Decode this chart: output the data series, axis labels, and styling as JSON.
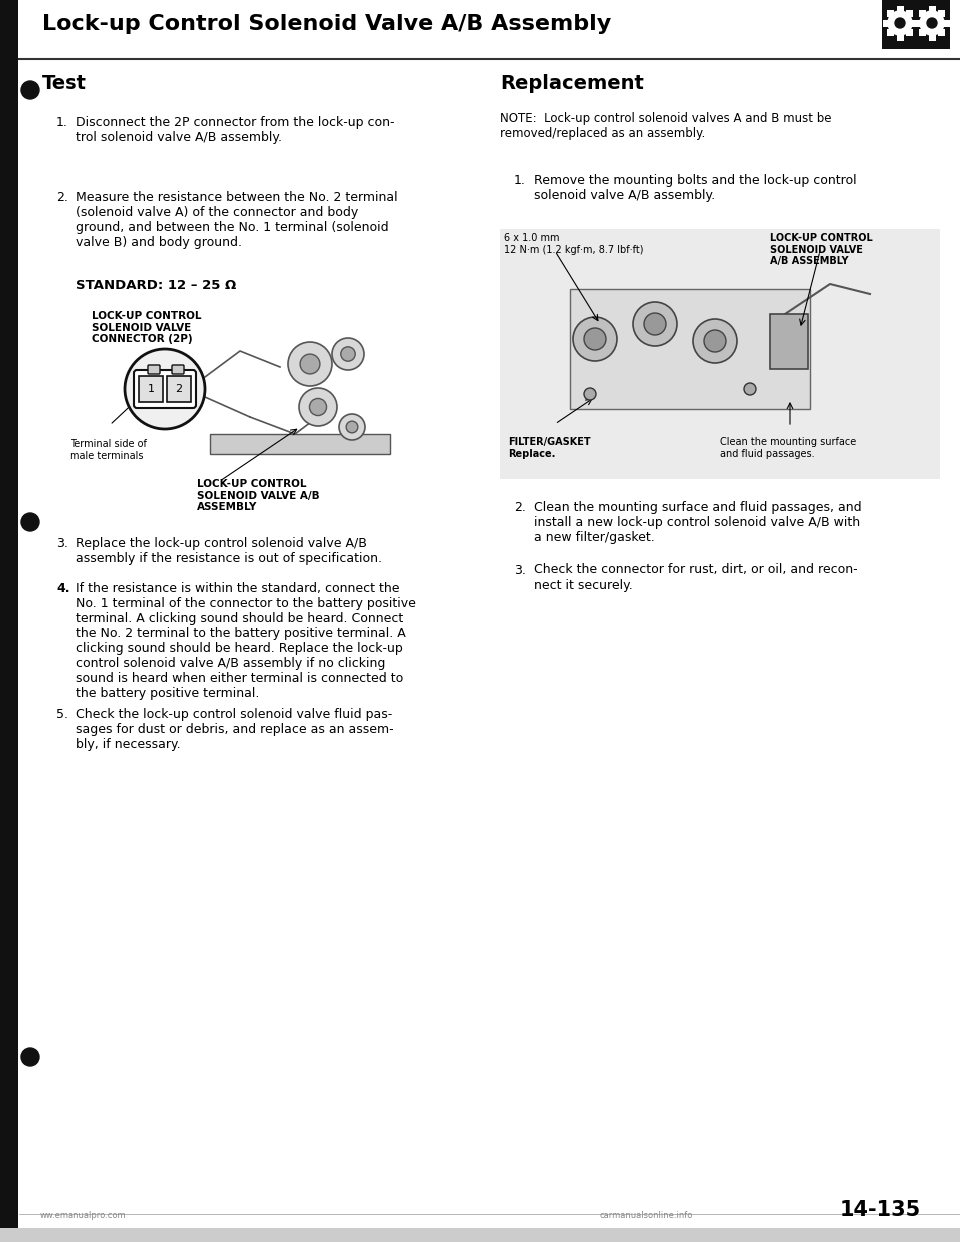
{
  "page_title": "Lock-up Control Solenoid Valve A/B Assembly",
  "bg_color": "#ffffff",
  "left_section_title": "Test",
  "right_section_title": "Replacement",
  "test_item1_num": "1.",
  "test_item1_text": "Disconnect the 2P connector from the lock-up con-\ntrol solenoid valve A/B assembly.",
  "test_item2_num": "2.",
  "test_item2_text": "Measure the resistance between the No. 2 terminal\n(solenoid valve A) of the connector and body\nground, and between the No. 1 terminal (solenoid\nvalve B) and body ground.",
  "standard_label": "STANDARD: 12 – 25 Ω",
  "connector_label": "LOCK-UP CONTROL\nSOLENOID VALVE\nCONNECTOR (2P)",
  "assembly_label": "LOCK-UP CONTROL\nSOLENOID VALVE A/B\nASSEMBLY",
  "terminal_label": "Terminal side of\nmale terminals",
  "test_item3_num": "3.",
  "test_item3_text": "Replace the lock-up control solenoid valve A/B\nassembly if the resistance is out of specification.",
  "test_item4_num": "4.",
  "test_item4_text": "If the resistance is within the standard, connect the\nNo. 1 terminal of the connector to the battery positive\nterminal. A clicking sound should be heard. Connect\nthe No. 2 terminal to the battery positive terminal. A\nclicking sound should be heard. Replace the lock-up\ncontrol solenoid valve A/B assembly if no clicking\nsound is heard when either terminal is connected to\nthe battery positive terminal.",
  "test_item5_num": "5.",
  "test_item5_text": "Check the lock-up control solenoid valve fluid pas-\nsages for dust or debris, and replace as an assem-\nbly, if necessary.",
  "replacement_note": "NOTE:  Lock-up control solenoid valves A and B must be\nremoved/replaced as an assembly.",
  "repl_item1_num": "1.",
  "repl_item1_text": "Remove the mounting bolts and the lock-up control\nsolenoid valve A/B assembly.",
  "repl_item2_num": "2.",
  "repl_item2_text": "Clean the mounting surface and fluid passages, and\ninstall a new lock-up control solenoid valve A/B with\na new filter/gasket.",
  "repl_item3_num": "3.",
  "repl_item3_text": "Check the connector for rust, dirt, or oil, and recon-\nnect it securely.",
  "bolt_label": "6 x 1.0 mm\n12 N·m (1.2 kgf·m, 8.7 lbf·ft)",
  "lockup_label_right": "LOCK-UP CONTROL\nSOLENOID VALVE\nA/B ASSEMBLY",
  "filter_label": "FILTER/GASKET\nReplace.",
  "clean_label": "Clean the mounting surface\nand fluid passages.",
  "page_number": "14-135",
  "website_left": "ww.emanualpro.com",
  "website_right": "carmanualsonline.info",
  "title_font_size": 16,
  "section_font_size": 14,
  "body_font_size": 9,
  "small_font_size": 7.5
}
